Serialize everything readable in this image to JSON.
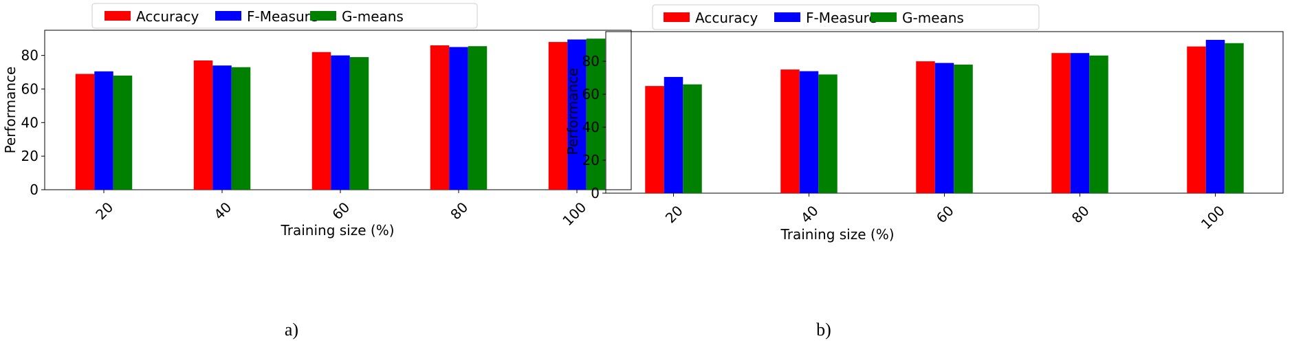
{
  "chart_data": [
    {
      "type": "bar",
      "categories": [
        "20",
        "40",
        "60",
        "80",
        "100"
      ],
      "series": [
        {
          "name": "Accuracy",
          "color": "#ff0000",
          "values": [
            69,
            77,
            82,
            86,
            88
          ]
        },
        {
          "name": "F-Measure",
          "color": "#0000ff",
          "values": [
            70.5,
            74,
            80,
            85,
            89.5
          ]
        },
        {
          "name": "G-means",
          "color": "#008000",
          "values": [
            68,
            73,
            79,
            85.5,
            90
          ]
        }
      ],
      "yticks": [
        "0",
        "20",
        "40",
        "60",
        "80"
      ],
      "ylim": [
        0,
        95
      ],
      "xlabel": "Training size (%)",
      "ylabel": "Performance",
      "legend": "top-center",
      "caption": "a)"
    },
    {
      "type": "bar",
      "categories": [
        "20",
        "40",
        "60",
        "80",
        "100"
      ],
      "series": [
        {
          "name": "Accuracy",
          "color": "#ff0000",
          "values": [
            65,
            75,
            80,
            85,
            89
          ]
        },
        {
          "name": "F-Measure",
          "color": "#0000ff",
          "values": [
            70.5,
            74,
            79,
            85,
            93
          ]
        },
        {
          "name": "G-means",
          "color": "#008000",
          "values": [
            66,
            72,
            78,
            83.5,
            91
          ]
        }
      ],
      "yticks": [
        "0",
        "20",
        "40",
        "60",
        "80"
      ],
      "ylim": [
        0,
        98
      ],
      "xlabel": "Training size (%)",
      "ylabel": "Performance",
      "legend": "top-center",
      "caption": "b)"
    }
  ]
}
